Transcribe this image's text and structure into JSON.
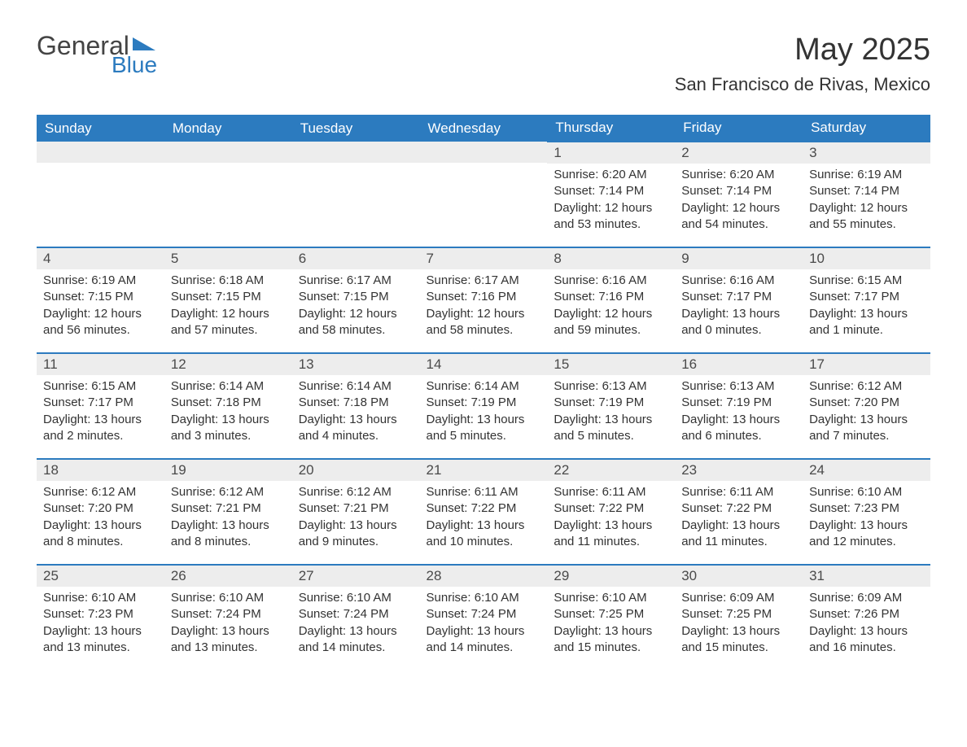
{
  "logo": {
    "general": "General",
    "blue": "Blue"
  },
  "title": "May 2025",
  "location": "San Francisco de Rivas, Mexico",
  "colors": {
    "header_bg": "#2c7bbf",
    "header_text": "#ffffff",
    "daynum_bg": "#ededed",
    "border": "#2c7bbf",
    "text": "#333333"
  },
  "weekdays": [
    "Sunday",
    "Monday",
    "Tuesday",
    "Wednesday",
    "Thursday",
    "Friday",
    "Saturday"
  ],
  "weeks": [
    [
      {
        "empty": true
      },
      {
        "empty": true
      },
      {
        "empty": true
      },
      {
        "empty": true
      },
      {
        "num": "1",
        "sunrise": "Sunrise: 6:20 AM",
        "sunset": "Sunset: 7:14 PM",
        "daylight": "Daylight: 12 hours and 53 minutes."
      },
      {
        "num": "2",
        "sunrise": "Sunrise: 6:20 AM",
        "sunset": "Sunset: 7:14 PM",
        "daylight": "Daylight: 12 hours and 54 minutes."
      },
      {
        "num": "3",
        "sunrise": "Sunrise: 6:19 AM",
        "sunset": "Sunset: 7:14 PM",
        "daylight": "Daylight: 12 hours and 55 minutes."
      }
    ],
    [
      {
        "num": "4",
        "sunrise": "Sunrise: 6:19 AM",
        "sunset": "Sunset: 7:15 PM",
        "daylight": "Daylight: 12 hours and 56 minutes."
      },
      {
        "num": "5",
        "sunrise": "Sunrise: 6:18 AM",
        "sunset": "Sunset: 7:15 PM",
        "daylight": "Daylight: 12 hours and 57 minutes."
      },
      {
        "num": "6",
        "sunrise": "Sunrise: 6:17 AM",
        "sunset": "Sunset: 7:15 PM",
        "daylight": "Daylight: 12 hours and 58 minutes."
      },
      {
        "num": "7",
        "sunrise": "Sunrise: 6:17 AM",
        "sunset": "Sunset: 7:16 PM",
        "daylight": "Daylight: 12 hours and 58 minutes."
      },
      {
        "num": "8",
        "sunrise": "Sunrise: 6:16 AM",
        "sunset": "Sunset: 7:16 PM",
        "daylight": "Daylight: 12 hours and 59 minutes."
      },
      {
        "num": "9",
        "sunrise": "Sunrise: 6:16 AM",
        "sunset": "Sunset: 7:17 PM",
        "daylight": "Daylight: 13 hours and 0 minutes."
      },
      {
        "num": "10",
        "sunrise": "Sunrise: 6:15 AM",
        "sunset": "Sunset: 7:17 PM",
        "daylight": "Daylight: 13 hours and 1 minute."
      }
    ],
    [
      {
        "num": "11",
        "sunrise": "Sunrise: 6:15 AM",
        "sunset": "Sunset: 7:17 PM",
        "daylight": "Daylight: 13 hours and 2 minutes."
      },
      {
        "num": "12",
        "sunrise": "Sunrise: 6:14 AM",
        "sunset": "Sunset: 7:18 PM",
        "daylight": "Daylight: 13 hours and 3 minutes."
      },
      {
        "num": "13",
        "sunrise": "Sunrise: 6:14 AM",
        "sunset": "Sunset: 7:18 PM",
        "daylight": "Daylight: 13 hours and 4 minutes."
      },
      {
        "num": "14",
        "sunrise": "Sunrise: 6:14 AM",
        "sunset": "Sunset: 7:19 PM",
        "daylight": "Daylight: 13 hours and 5 minutes."
      },
      {
        "num": "15",
        "sunrise": "Sunrise: 6:13 AM",
        "sunset": "Sunset: 7:19 PM",
        "daylight": "Daylight: 13 hours and 5 minutes."
      },
      {
        "num": "16",
        "sunrise": "Sunrise: 6:13 AM",
        "sunset": "Sunset: 7:19 PM",
        "daylight": "Daylight: 13 hours and 6 minutes."
      },
      {
        "num": "17",
        "sunrise": "Sunrise: 6:12 AM",
        "sunset": "Sunset: 7:20 PM",
        "daylight": "Daylight: 13 hours and 7 minutes."
      }
    ],
    [
      {
        "num": "18",
        "sunrise": "Sunrise: 6:12 AM",
        "sunset": "Sunset: 7:20 PM",
        "daylight": "Daylight: 13 hours and 8 minutes."
      },
      {
        "num": "19",
        "sunrise": "Sunrise: 6:12 AM",
        "sunset": "Sunset: 7:21 PM",
        "daylight": "Daylight: 13 hours and 8 minutes."
      },
      {
        "num": "20",
        "sunrise": "Sunrise: 6:12 AM",
        "sunset": "Sunset: 7:21 PM",
        "daylight": "Daylight: 13 hours and 9 minutes."
      },
      {
        "num": "21",
        "sunrise": "Sunrise: 6:11 AM",
        "sunset": "Sunset: 7:22 PM",
        "daylight": "Daylight: 13 hours and 10 minutes."
      },
      {
        "num": "22",
        "sunrise": "Sunrise: 6:11 AM",
        "sunset": "Sunset: 7:22 PM",
        "daylight": "Daylight: 13 hours and 11 minutes."
      },
      {
        "num": "23",
        "sunrise": "Sunrise: 6:11 AM",
        "sunset": "Sunset: 7:22 PM",
        "daylight": "Daylight: 13 hours and 11 minutes."
      },
      {
        "num": "24",
        "sunrise": "Sunrise: 6:10 AM",
        "sunset": "Sunset: 7:23 PM",
        "daylight": "Daylight: 13 hours and 12 minutes."
      }
    ],
    [
      {
        "num": "25",
        "sunrise": "Sunrise: 6:10 AM",
        "sunset": "Sunset: 7:23 PM",
        "daylight": "Daylight: 13 hours and 13 minutes."
      },
      {
        "num": "26",
        "sunrise": "Sunrise: 6:10 AM",
        "sunset": "Sunset: 7:24 PM",
        "daylight": "Daylight: 13 hours and 13 minutes."
      },
      {
        "num": "27",
        "sunrise": "Sunrise: 6:10 AM",
        "sunset": "Sunset: 7:24 PM",
        "daylight": "Daylight: 13 hours and 14 minutes."
      },
      {
        "num": "28",
        "sunrise": "Sunrise: 6:10 AM",
        "sunset": "Sunset: 7:24 PM",
        "daylight": "Daylight: 13 hours and 14 minutes."
      },
      {
        "num": "29",
        "sunrise": "Sunrise: 6:10 AM",
        "sunset": "Sunset: 7:25 PM",
        "daylight": "Daylight: 13 hours and 15 minutes."
      },
      {
        "num": "30",
        "sunrise": "Sunrise: 6:09 AM",
        "sunset": "Sunset: 7:25 PM",
        "daylight": "Daylight: 13 hours and 15 minutes."
      },
      {
        "num": "31",
        "sunrise": "Sunrise: 6:09 AM",
        "sunset": "Sunset: 7:26 PM",
        "daylight": "Daylight: 13 hours and 16 minutes."
      }
    ]
  ]
}
